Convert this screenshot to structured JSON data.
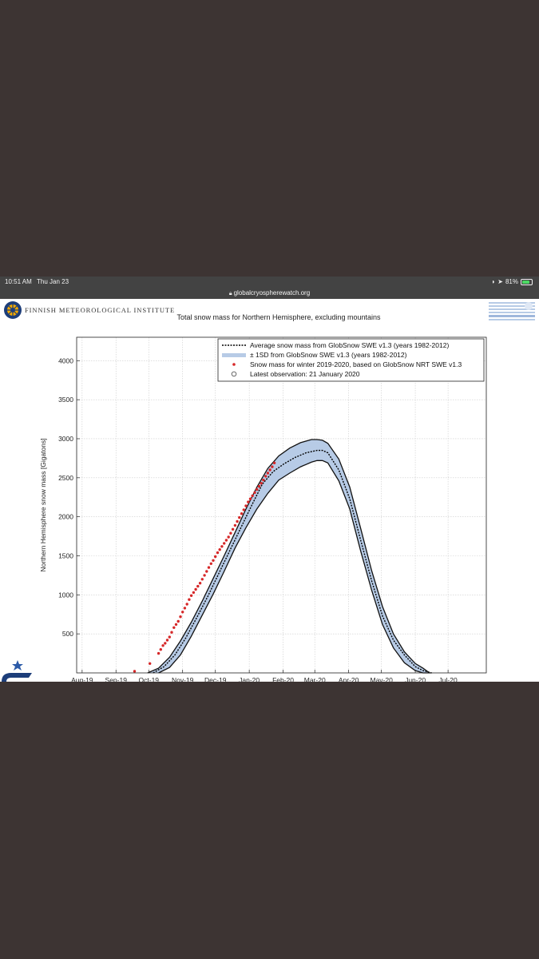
{
  "status_bar": {
    "time": "10:51 AM",
    "date": "Thu Jan 23",
    "battery": "81%",
    "battery_level": 0.81
  },
  "browser": {
    "url": "globalcryospherewatch.org"
  },
  "header": {
    "org_name": "FINNISH METEOROLOGICAL INSTITUTE"
  },
  "chart_data": {
    "type": "line",
    "title": "Total snow mass for Northern Hemisphere, excluding mountains",
    "ylabel": "Northern Hemisphere snow mass [Gigatons]",
    "xlabel": "",
    "x_ticks": [
      "Aug-19",
      "Sep-19",
      "Oct-19",
      "Nov-19",
      "Dec-19",
      "Jan-20",
      "Feb-20",
      "Mar-20",
      "Apr-20",
      "May-20",
      "Jun-20",
      "Jul-20"
    ],
    "x_tick_days": [
      0,
      31,
      61,
      92,
      122,
      153,
      184,
      213,
      244,
      274,
      305,
      335
    ],
    "x_range_days": [
      -5,
      370
    ],
    "y_ticks": [
      500,
      1000,
      1500,
      2000,
      2500,
      3000,
      3500,
      4000
    ],
    "ylim": [
      0,
      4300
    ],
    "grid": true,
    "legend_position": "top-right",
    "legend": [
      "Average snow mass from GlobSnow SWE v1.3 (years 1982-2012)",
      "± 1SD from GlobSnow SWE v1.3 (years 1982-2012)",
      "Snow mass for winter 2019-2020, based on GlobSnow NRT SWE v1.3",
      "Latest observation: 21 January 2020"
    ],
    "series": [
      {
        "name": "Average snow mass from GlobSnow SWE v1.3 (years 1982-2012)",
        "style": "dotted",
        "color": "#000000",
        "x": [
          65,
          75,
          85,
          95,
          105,
          115,
          125,
          135,
          145,
          155,
          165,
          175,
          185,
          195,
          205,
          215,
          220,
          225,
          235,
          245,
          255,
          265,
          275,
          285,
          295,
          305,
          312,
          320
        ],
        "y": [
          0,
          80,
          230,
          450,
          710,
          980,
          1270,
          1560,
          1850,
          2140,
          2420,
          2580,
          2680,
          2760,
          2820,
          2850,
          2850,
          2820,
          2600,
          2230,
          1700,
          1180,
          730,
          420,
          230,
          80,
          30,
          0
        ]
      },
      {
        "name": "± 1SD upper",
        "style": "band",
        "color": "#b7cbe6",
        "x": [
          60,
          70,
          80,
          90,
          100,
          110,
          120,
          130,
          140,
          150,
          160,
          170,
          180,
          190,
          200,
          210,
          215,
          220,
          225,
          235,
          245,
          255,
          265,
          275,
          285,
          295,
          305,
          312,
          318
        ],
        "y": [
          0,
          60,
          200,
          410,
          650,
          920,
          1210,
          1500,
          1800,
          2100,
          2380,
          2620,
          2780,
          2880,
          2950,
          2990,
          2990,
          2980,
          2940,
          2740,
          2380,
          1850,
          1310,
          850,
          500,
          270,
          120,
          60,
          0
        ]
      },
      {
        "name": "± 1SD lower",
        "style": "band",
        "color": "#b7cbe6",
        "x": [
          70,
          80,
          90,
          100,
          110,
          120,
          130,
          140,
          150,
          160,
          170,
          180,
          190,
          200,
          210,
          215,
          220,
          225,
          235,
          245,
          255,
          265,
          275,
          285,
          295,
          305,
          312,
          320
        ],
        "y": [
          0,
          70,
          230,
          470,
          740,
          1010,
          1300,
          1600,
          1860,
          2100,
          2300,
          2470,
          2560,
          2640,
          2700,
          2720,
          2720,
          2690,
          2460,
          2100,
          1560,
          1060,
          620,
          320,
          130,
          30,
          0,
          0
        ]
      },
      {
        "name": "Snow mass for winter 2019-2020, based on GlobSnow NRT SWE v1.3",
        "style": "points",
        "color": "#d62728",
        "x": [
          48,
          62,
          70,
          72,
          74,
          76,
          78,
          80,
          82,
          84,
          86,
          88,
          90,
          92,
          94,
          96,
          98,
          100,
          102,
          104,
          106,
          108,
          110,
          112,
          114,
          116,
          118,
          120,
          122,
          124,
          126,
          128,
          130,
          132,
          134,
          136,
          138,
          140,
          142,
          144,
          146,
          148,
          150,
          152,
          154,
          156,
          158,
          160,
          162,
          164,
          166,
          168,
          170,
          172,
          174,
          176
        ],
        "y": [
          20,
          120,
          250,
          300,
          350,
          380,
          420,
          460,
          520,
          580,
          620,
          660,
          720,
          780,
          830,
          880,
          940,
          990,
          1030,
          1070,
          1110,
          1150,
          1200,
          1250,
          1300,
          1350,
          1400,
          1440,
          1490,
          1540,
          1580,
          1620,
          1660,
          1700,
          1740,
          1790,
          1840,
          1890,
          1940,
          1990,
          2040,
          2090,
          2140,
          2190,
          2230,
          2270,
          2310,
          2350,
          2390,
          2430,
          2470,
          2520,
          2560,
          2600,
          2640,
          2690
        ]
      },
      {
        "name": "Latest observation: 21 January 2020",
        "style": "open-circle",
        "color": "#555555",
        "x": [],
        "y": []
      }
    ]
  },
  "colors": {
    "band": "#b7cbe6",
    "average": "#000000",
    "observed": "#d62728",
    "screen_bg": "#3d3433"
  },
  "icons": {
    "fmi": "fmi-logo-icon",
    "globsnow": "globsnow-logo-icon",
    "cgw": "cgw-logo-icon"
  }
}
